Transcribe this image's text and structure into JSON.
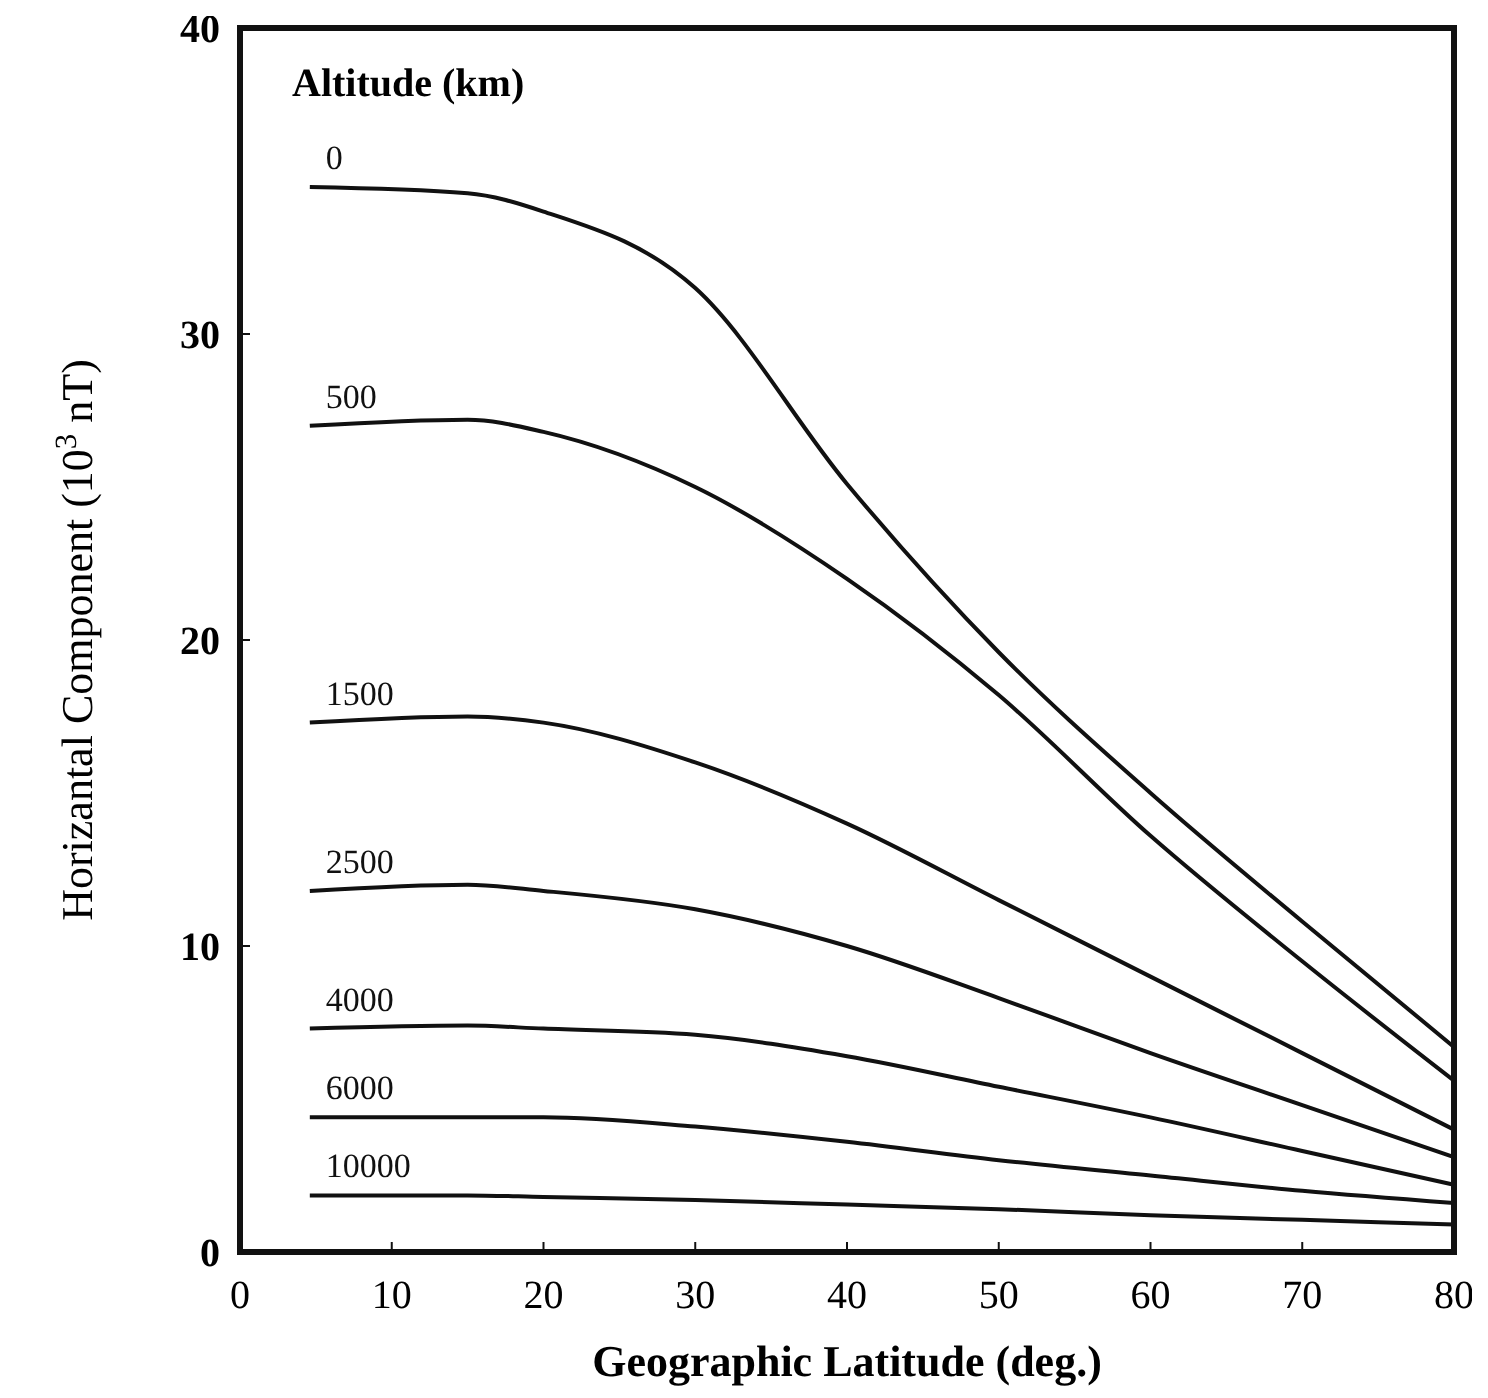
{
  "chart_data": {
    "type": "line",
    "xlabel": "Geographic Latitude (deg.)",
    "ylabel": "Horizantal Component (10$^{3}$ nT)",
    "legend_title": "Altitude (km)",
    "x": [
      4.6,
      15,
      20,
      30,
      40,
      50,
      60,
      70,
      80
    ],
    "series": [
      {
        "name": "0",
        "color": "#111111",
        "values": [
          34.8,
          34.6,
          34.0,
          31.5,
          25.1,
          19.6,
          15.0,
          10.8,
          6.7
        ]
      },
      {
        "name": "500",
        "color": "#111111",
        "values": [
          27.0,
          27.2,
          26.8,
          25.0,
          22.0,
          18.2,
          13.6,
          9.5,
          5.6
        ]
      },
      {
        "name": "1500",
        "color": "#111111",
        "values": [
          17.3,
          17.5,
          17.3,
          16.0,
          14.0,
          11.5,
          9.0,
          6.5,
          4.0
        ]
      },
      {
        "name": "2500",
        "color": "#111111",
        "values": [
          11.8,
          12.0,
          11.8,
          11.2,
          10.0,
          8.3,
          6.5,
          4.8,
          3.1
        ]
      },
      {
        "name": "4000",
        "color": "#111111",
        "values": [
          7.3,
          7.4,
          7.3,
          7.1,
          6.4,
          5.4,
          4.4,
          3.3,
          2.2
        ]
      },
      {
        "name": "6000",
        "color": "#111111",
        "values": [
          4.4,
          4.4,
          4.4,
          4.1,
          3.6,
          3.0,
          2.5,
          2.0,
          1.6
        ]
      },
      {
        "name": "10000",
        "color": "#111111",
        "values": [
          1.85,
          1.85,
          1.8,
          1.7,
          1.55,
          1.4,
          1.2,
          1.05,
          0.9
        ]
      }
    ],
    "xlim": [
      0,
      80
    ],
    "xticks": [
      0,
      10,
      20,
      30,
      40,
      50,
      60,
      70,
      80
    ],
    "ylim": [
      0,
      40
    ],
    "yticks": [
      0,
      10,
      20,
      30,
      40
    ],
    "grid": false,
    "marker": "none",
    "line_style": "solid"
  }
}
